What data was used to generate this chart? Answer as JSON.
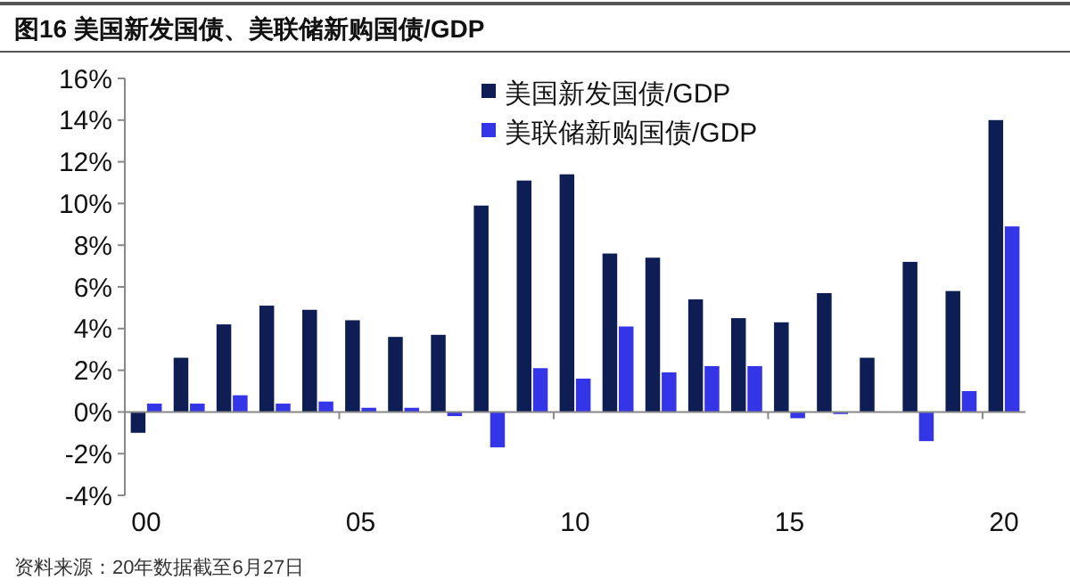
{
  "chart_data": {
    "type": "bar",
    "title": "图16 美国新发国债、美联储新购国债/GDP",
    "categories": [
      "00",
      null,
      null,
      null,
      null,
      "05",
      null,
      null,
      null,
      null,
      "10",
      null,
      null,
      null,
      null,
      "15",
      null,
      null,
      null,
      null,
      "20"
    ],
    "series": [
      {
        "name": "美国新发国债/GDP",
        "color": "#0f1d55",
        "values": [
          -1.0,
          2.6,
          4.2,
          5.1,
          4.9,
          4.4,
          3.6,
          3.7,
          9.9,
          11.1,
          11.4,
          7.6,
          7.4,
          5.4,
          4.5,
          4.3,
          5.7,
          2.6,
          7.2,
          5.8,
          14.0
        ]
      },
      {
        "name": "美联储新购国债/GDP",
        "color": "#3535e8",
        "values": [
          0.4,
          0.4,
          0.8,
          0.4,
          0.5,
          0.2,
          0.2,
          -0.2,
          -1.7,
          2.1,
          1.6,
          4.1,
          1.9,
          2.2,
          2.2,
          -0.3,
          -0.1,
          null,
          -1.4,
          1.0,
          8.9
        ]
      }
    ],
    "ylim": [
      -4,
      16
    ],
    "yticks": [
      {
        "value": -4,
        "label": "-4%"
      },
      {
        "value": -2,
        "label": "-2%"
      },
      {
        "value": 0,
        "label": "0%"
      },
      {
        "value": 2,
        "label": "2%"
      },
      {
        "value": 4,
        "label": "4%"
      },
      {
        "value": 6,
        "label": "6%"
      },
      {
        "value": 8,
        "label": "8%"
      },
      {
        "value": 10,
        "label": "10%"
      },
      {
        "value": 12,
        "label": "12%"
      },
      {
        "value": 14,
        "label": "14%"
      },
      {
        "value": 16,
        "label": "16%"
      }
    ],
    "legend": "top",
    "annotations": [
      "资料来源：20年数据截至6月27日"
    ]
  }
}
